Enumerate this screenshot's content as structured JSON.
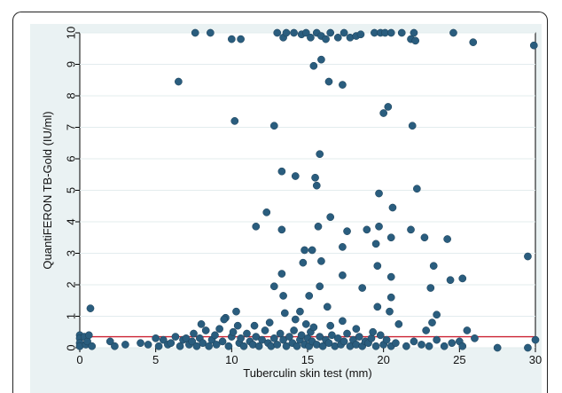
{
  "chart_data": {
    "type": "scatter",
    "xlabel": "Tuberculin skin test (mm)",
    "ylabel": "QuantiFERON TB-Gold (IU/ml)",
    "xlim": [
      0,
      30
    ],
    "ylim": [
      0,
      10
    ],
    "xticks": [
      0,
      5,
      10,
      15,
      20,
      25,
      30
    ],
    "yticks": [
      0,
      1,
      2,
      3,
      4,
      5,
      6,
      7,
      8,
      9,
      10
    ],
    "grid": true,
    "marker_color": "#2a5d7e",
    "threshold_line": {
      "y": 0.35,
      "color": "#cc2233"
    },
    "series": [
      {
        "points": [
          [
            0,
            0.4
          ],
          [
            0,
            0.3
          ],
          [
            0,
            0.15
          ],
          [
            0,
            0.05
          ],
          [
            0.3,
            0.35
          ],
          [
            0.4,
            0.1
          ],
          [
            0.5,
            0.2
          ],
          [
            0.7,
            1.25
          ],
          [
            0.6,
            0.4
          ],
          [
            0.8,
            0.05
          ],
          [
            2,
            0.2
          ],
          [
            2.3,
            0.05
          ],
          [
            3,
            0.1
          ],
          [
            4,
            0.15
          ],
          [
            4.5,
            0.1
          ],
          [
            5,
            0.3
          ],
          [
            5.2,
            0.05
          ],
          [
            5.5,
            0.25
          ],
          [
            5.8,
            0.1
          ],
          [
            6,
            0.15
          ],
          [
            6.3,
            0.35
          ],
          [
            6.6,
            0.05
          ],
          [
            6.8,
            0.25
          ],
          [
            7,
            0.3
          ],
          [
            7.2,
            0.1
          ],
          [
            7.4,
            0.2
          ],
          [
            7.5,
            0.45
          ],
          [
            7.7,
            0.05
          ],
          [
            7.9,
            0.3
          ],
          [
            8.1,
            0.15
          ],
          [
            8.3,
            0.55
          ],
          [
            8.5,
            0.05
          ],
          [
            8.7,
            0.25
          ],
          [
            8.9,
            0.4
          ],
          [
            9,
            0.1
          ],
          [
            9.2,
            0.6
          ],
          [
            9.4,
            0.2
          ],
          [
            9.6,
            0.95
          ],
          [
            9.8,
            0.05
          ],
          [
            10,
            0.35
          ],
          [
            10.1,
            0.5
          ],
          [
            10.3,
            1.15
          ],
          [
            10.5,
            0.15
          ],
          [
            10.6,
            0.3
          ],
          [
            10.8,
            0.05
          ],
          [
            11,
            0.45
          ],
          [
            11.2,
            0.2
          ],
          [
            11.4,
            0.1
          ],
          [
            11.6,
            0.35
          ],
          [
            11.8,
            0.05
          ],
          [
            12,
            0.25
          ],
          [
            12.2,
            0.55
          ],
          [
            12.4,
            0.15
          ],
          [
            12.6,
            0.05
          ],
          [
            12.8,
            0.3
          ],
          [
            13,
            0.1
          ],
          [
            13.2,
            0.45
          ],
          [
            13.4,
            0.25
          ],
          [
            13.6,
            0.05
          ],
          [
            13.8,
            0.35
          ],
          [
            14,
            0.15
          ],
          [
            14.1,
            0.55
          ],
          [
            14.3,
            0.05
          ],
          [
            14.5,
            0.25
          ],
          [
            14.6,
            0.4
          ],
          [
            14.8,
            0.1
          ],
          [
            15,
            0.3
          ],
          [
            15.1,
            0.05
          ],
          [
            15.2,
            0.5
          ],
          [
            15.3,
            0.2
          ],
          [
            15.4,
            0.65
          ],
          [
            15.6,
            0.1
          ],
          [
            15.8,
            0.35
          ],
          [
            16,
            0.05
          ],
          [
            16.2,
            0.25
          ],
          [
            16.4,
            0.15
          ],
          [
            16.6,
            0.4
          ],
          [
            16.8,
            0.05
          ],
          [
            17,
            0.3
          ],
          [
            17.2,
            0.1
          ],
          [
            17.4,
            0.2
          ],
          [
            17.6,
            0.45
          ],
          [
            17.8,
            0.05
          ],
          [
            18,
            0.25
          ],
          [
            18.2,
            0.1
          ],
          [
            18.4,
            0.35
          ],
          [
            18.6,
            0.05
          ],
          [
            18.8,
            0.2
          ],
          [
            19,
            0.15
          ],
          [
            19.2,
            0.3
          ],
          [
            19.5,
            0.05
          ],
          [
            19.8,
            0.4
          ],
          [
            20,
            0.1
          ],
          [
            20.2,
            0.25
          ],
          [
            20.5,
            0.05
          ],
          [
            20.8,
            0.15
          ],
          [
            21.5,
            0.05
          ],
          [
            22,
            0.2
          ],
          [
            22.5,
            0.1
          ],
          [
            23,
            0.05
          ],
          [
            23.5,
            0.25
          ],
          [
            24,
            0.05
          ],
          [
            24.5,
            0.15
          ],
          [
            25,
            0.2
          ],
          [
            25.2,
            0.05
          ],
          [
            26,
            0.3
          ],
          [
            27.5,
            0
          ],
          [
            29.5,
            0
          ],
          [
            30,
            0.25
          ],
          [
            11.5,
            0.7
          ],
          [
            12.5,
            0.8
          ],
          [
            13.5,
            1.1
          ],
          [
            14.2,
            0.9
          ],
          [
            16.5,
            0.7
          ],
          [
            17.3,
            0.85
          ],
          [
            19.6,
            1.3
          ],
          [
            21,
            0.75
          ],
          [
            22.8,
            0.55
          ],
          [
            23.2,
            0.8
          ],
          [
            8,
            0.75
          ],
          [
            9.5,
            0.9
          ],
          [
            10.4,
            0.7
          ],
          [
            14.9,
            0.75
          ],
          [
            18.2,
            0.6
          ],
          [
            19.3,
            0.5
          ],
          [
            25.5,
            0.55
          ],
          [
            20.4,
            1.15
          ],
          [
            6.5,
            8.45
          ],
          [
            7.6,
            10
          ],
          [
            8.6,
            10
          ],
          [
            10,
            9.8
          ],
          [
            10.6,
            9.8
          ],
          [
            10.2,
            7.2
          ],
          [
            12.8,
            7.05
          ],
          [
            13,
            10
          ],
          [
            13.4,
            9.85
          ],
          [
            13.6,
            10
          ],
          [
            14.1,
            10
          ],
          [
            14.6,
            9.95
          ],
          [
            14.9,
            10
          ],
          [
            15.2,
            9.85
          ],
          [
            15.6,
            10
          ],
          [
            15.9,
            9.9
          ],
          [
            16.2,
            9.8
          ],
          [
            16.5,
            10
          ],
          [
            17,
            9.85
          ],
          [
            17.4,
            10
          ],
          [
            17.8,
            9.85
          ],
          [
            18.2,
            9.9
          ],
          [
            18.5,
            9.95
          ],
          [
            19.4,
            10
          ],
          [
            19.8,
            10
          ],
          [
            20.1,
            10
          ],
          [
            20.5,
            10
          ],
          [
            21.2,
            10
          ],
          [
            21.8,
            9.8
          ],
          [
            22,
            10
          ],
          [
            22.1,
            9.75
          ],
          [
            24.6,
            10
          ],
          [
            25.9,
            9.7
          ],
          [
            29.9,
            9.6
          ],
          [
            15.4,
            8.95
          ],
          [
            15.9,
            9.15
          ],
          [
            16.4,
            8.45
          ],
          [
            17.3,
            8.35
          ],
          [
            20,
            7.45
          ],
          [
            20.3,
            7.65
          ],
          [
            21.9,
            7.05
          ],
          [
            13.3,
            5.6
          ],
          [
            14.2,
            5.45
          ],
          [
            15.5,
            5.4
          ],
          [
            15.8,
            6.15
          ],
          [
            15.6,
            5.15
          ],
          [
            19.7,
            4.9
          ],
          [
            22.2,
            5.05
          ],
          [
            11.6,
            3.85
          ],
          [
            12.3,
            4.3
          ],
          [
            13.3,
            3.75
          ],
          [
            15.7,
            3.85
          ],
          [
            16.5,
            4.15
          ],
          [
            17.6,
            3.7
          ],
          [
            18.9,
            3.75
          ],
          [
            19.7,
            3.85
          ],
          [
            20.6,
            4.45
          ],
          [
            20.5,
            3.5
          ],
          [
            21.8,
            3.75
          ],
          [
            22.7,
            3.5
          ],
          [
            24.2,
            3.45
          ],
          [
            14.8,
            3.1
          ],
          [
            15.3,
            3.1
          ],
          [
            17.3,
            3.2
          ],
          [
            19.5,
            3.3
          ],
          [
            13.3,
            2.35
          ],
          [
            14.7,
            2.7
          ],
          [
            15.9,
            2.75
          ],
          [
            17.3,
            2.3
          ],
          [
            19.6,
            2.6
          ],
          [
            20.5,
            2.25
          ],
          [
            23.3,
            2.6
          ],
          [
            24.4,
            2.15
          ],
          [
            25.2,
            2.2
          ],
          [
            29.5,
            2.9
          ],
          [
            12.8,
            1.95
          ],
          [
            13.4,
            1.65
          ],
          [
            15.1,
            1.65
          ],
          [
            15.8,
            1.95
          ],
          [
            18.6,
            1.9
          ],
          [
            20.5,
            1.6
          ],
          [
            23.1,
            1.9
          ],
          [
            14.5,
            1.15
          ],
          [
            16.3,
            1.3
          ],
          [
            23.5,
            1.05
          ]
        ]
      }
    ]
  }
}
